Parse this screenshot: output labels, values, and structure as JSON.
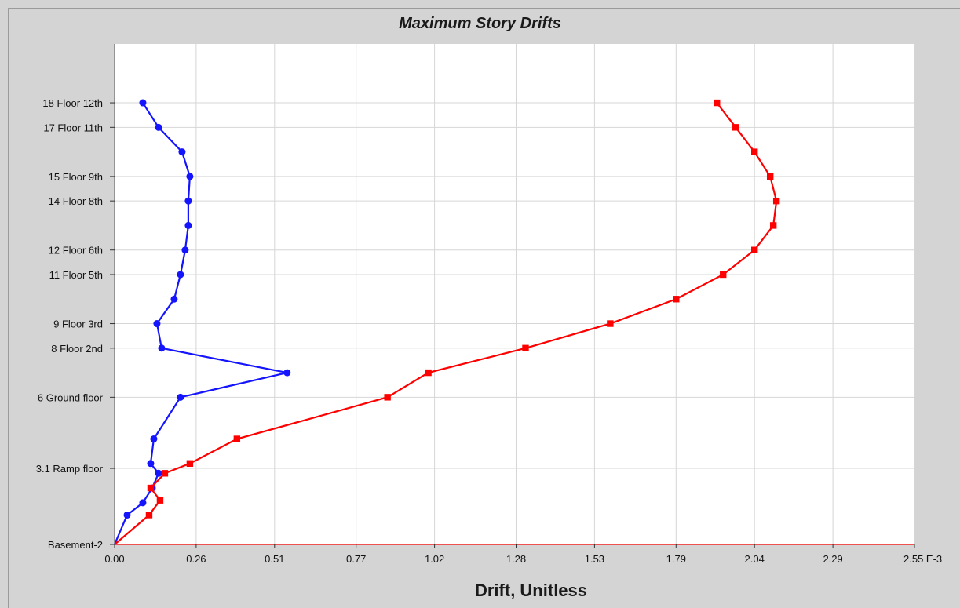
{
  "chart_data": {
    "type": "line",
    "title": "Maximum Story Drifts",
    "xlabel": "Drift, Unitless",
    "x_unit_suffix": "E-3",
    "xlim": [
      0,
      2.55
    ],
    "x_ticks": [
      "0.00",
      "0.26",
      "0.51",
      "0.77",
      "1.02",
      "1.28",
      "1.53",
      "1.79",
      "2.04",
      "2.29",
      "2.55"
    ],
    "y_labels": [
      {
        "level": 0,
        "label": "Basement-2"
      },
      {
        "level": 3.1,
        "label": "3.1 Ramp floor"
      },
      {
        "level": 6,
        "label": "6  Ground floor"
      },
      {
        "level": 8,
        "label": "8 Floor 2nd"
      },
      {
        "level": 9,
        "label": "9 Floor 3rd"
      },
      {
        "level": 11,
        "label": "11 Floor 5th"
      },
      {
        "level": 12,
        "label": "12 Floor 6th"
      },
      {
        "level": 14,
        "label": "14 Floor 8th"
      },
      {
        "level": 15,
        "label": "15 Floor 9th"
      },
      {
        "level": 17,
        "label": "17 Floor 11th"
      },
      {
        "level": 18,
        "label": "18 Floor 12th"
      }
    ],
    "ylim": [
      0,
      20.4
    ],
    "grid": true,
    "series": [
      {
        "color": "#1414ff",
        "marker": "circle",
        "points": [
          [
            0,
            0
          ],
          [
            0.04,
            1.2
          ],
          [
            0.09,
            1.7
          ],
          [
            0.12,
            2.3
          ],
          [
            0.14,
            2.9
          ],
          [
            0.115,
            3.3
          ],
          [
            0.125,
            4.3
          ],
          [
            0.21,
            6.0
          ],
          [
            0.55,
            7.0
          ],
          [
            0.15,
            8.0
          ],
          [
            0.135,
            9.0
          ],
          [
            0.19,
            10.0
          ],
          [
            0.21,
            11.0
          ],
          [
            0.225,
            12.0
          ],
          [
            0.235,
            13.0
          ],
          [
            0.235,
            14.0
          ],
          [
            0.24,
            15.0
          ],
          [
            0.215,
            16.0
          ],
          [
            0.14,
            17.0
          ],
          [
            0.09,
            18.0
          ]
        ]
      },
      {
        "color": "#ff0000",
        "marker": "square",
        "points": [
          [
            0,
            0
          ],
          [
            0.11,
            1.2
          ],
          [
            0.145,
            1.8
          ],
          [
            0.115,
            2.3
          ],
          [
            0.16,
            2.9
          ],
          [
            0.24,
            3.3
          ],
          [
            0.39,
            4.3
          ],
          [
            0.87,
            6.0
          ],
          [
            1.0,
            7.0
          ],
          [
            1.31,
            8.0
          ],
          [
            1.58,
            9.0
          ],
          [
            1.79,
            10.0
          ],
          [
            1.94,
            11.0
          ],
          [
            2.04,
            12.0
          ],
          [
            2.1,
            13.0
          ],
          [
            2.11,
            14.0
          ],
          [
            2.09,
            15.0
          ],
          [
            2.04,
            16.0
          ],
          [
            1.98,
            17.0
          ],
          [
            1.92,
            18.0
          ]
        ]
      }
    ]
  }
}
